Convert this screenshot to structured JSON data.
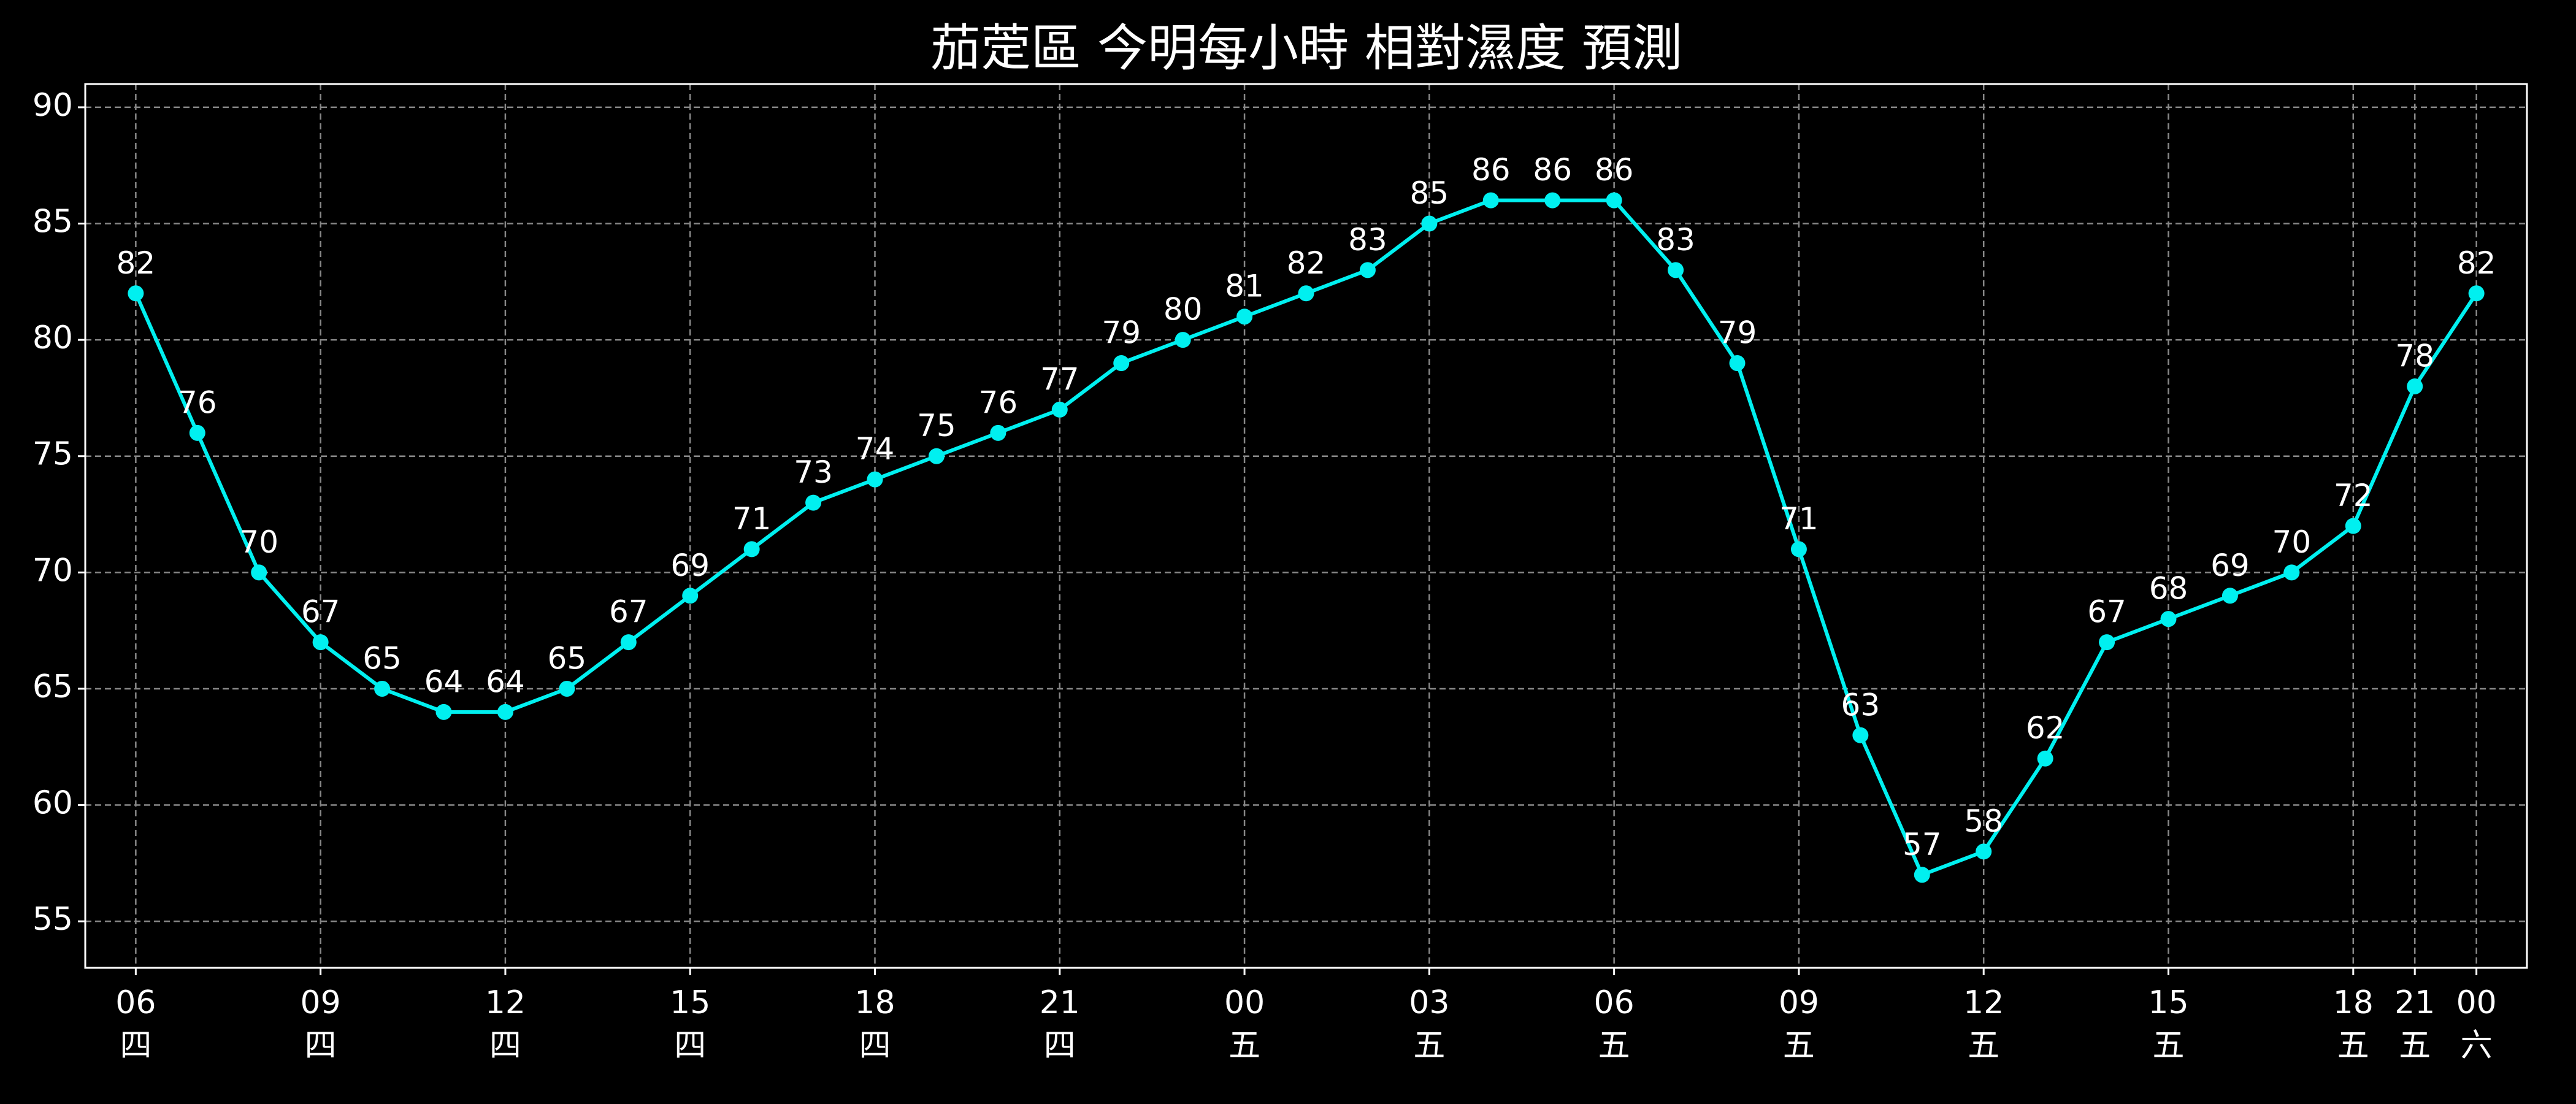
{
  "chart_data": {
    "type": "line",
    "title": "茄萣區 今明每小時 相對濕度 預測",
    "categories": [
      "06",
      null,
      null,
      "09",
      null,
      null,
      "12",
      null,
      null,
      "15",
      null,
      null,
      "18",
      null,
      null,
      "21",
      null,
      null,
      "00",
      null,
      null,
      "03",
      null,
      null,
      "06",
      null,
      null,
      "09",
      null,
      null,
      "12",
      null,
      null,
      "15",
      null,
      null,
      "18",
      "21",
      "00"
    ],
    "category_days": [
      "四",
      null,
      null,
      "四",
      null,
      null,
      "四",
      null,
      null,
      "四",
      null,
      null,
      "四",
      null,
      null,
      "四",
      null,
      null,
      "五",
      null,
      null,
      "五",
      null,
      null,
      "五",
      null,
      null,
      "五",
      null,
      null,
      "五",
      null,
      null,
      "五",
      null,
      null,
      "五",
      "五",
      "六"
    ],
    "series": [
      {
        "name": "相對濕度",
        "color": "#00f0f0",
        "values": [
          82,
          76,
          70,
          67,
          65,
          64,
          64,
          65,
          67,
          69,
          71,
          73,
          74,
          75,
          76,
          77,
          79,
          80,
          81,
          82,
          83,
          85,
          86,
          86,
          86,
          83,
          79,
          71,
          63,
          57,
          58,
          62,
          67,
          68,
          69,
          70,
          72,
          78,
          82
        ]
      }
    ],
    "ylim": [
      53,
      91
    ],
    "yticks": [
      55,
      60,
      65,
      70,
      75,
      80,
      85,
      90
    ],
    "grid": true
  }
}
